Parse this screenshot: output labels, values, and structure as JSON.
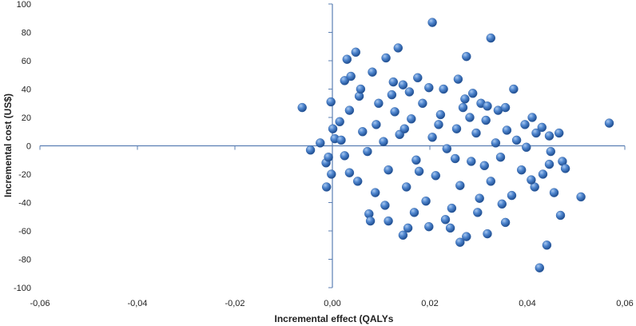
{
  "chart_data": {
    "type": "scatter",
    "title": "",
    "xlabel": "Incremental effect (QALYs",
    "ylabel": "Incremental cost (US$)",
    "xlim": [
      -0.06,
      0.06
    ],
    "ylim": [
      -100,
      100
    ],
    "x_ticks": [
      "-0,06",
      "-0,04",
      "-0,02",
      "0,00",
      "0,02",
      "0,04",
      "0,06"
    ],
    "y_ticks": [
      "100",
      "80",
      "60",
      "40",
      "20",
      "0",
      "-20",
      "-40",
      "-60",
      "-80",
      "-100"
    ],
    "grid": false,
    "legend": "none",
    "marker_color": "#3d73b8",
    "series": [
      {
        "values": [
          [
            -0.0062,
            27
          ],
          [
            -0.0045,
            -3
          ],
          [
            -0.0025,
            2
          ],
          [
            -0.0013,
            -12
          ],
          [
            -0.0012,
            -29
          ],
          [
            -0.0008,
            -8
          ],
          [
            -0.0003,
            31
          ],
          [
            -0.0002,
            -20
          ],
          [
            0.0001,
            12
          ],
          [
            0.0005,
            5
          ],
          [
            0.0025,
            46
          ],
          [
            0.003,
            61
          ],
          [
            0.0038,
            49
          ],
          [
            0.0048,
            66
          ],
          [
            0.0055,
            35
          ],
          [
            0.0082,
            52
          ],
          [
            0.0095,
            30
          ],
          [
            0.011,
            62
          ],
          [
            0.0125,
            45
          ],
          [
            0.0145,
            43
          ],
          [
            0.0135,
            69
          ],
          [
            0.0158,
            38
          ],
          [
            0.0175,
            48
          ],
          [
            0.0205,
            87
          ],
          [
            0.0228,
            40
          ],
          [
            0.0258,
            47
          ],
          [
            0.0275,
            63
          ],
          [
            0.0325,
            76
          ],
          [
            0.0288,
            37
          ],
          [
            0.0305,
            30
          ],
          [
            0.034,
            25
          ],
          [
            0.0355,
            27
          ],
          [
            0.0372,
            40
          ],
          [
            0.041,
            20
          ],
          [
            0.0395,
            15
          ],
          [
            0.0418,
            9
          ],
          [
            0.043,
            13
          ],
          [
            0.0445,
            7
          ],
          [
            0.0465,
            9
          ],
          [
            0.0568,
            16
          ],
          [
            0.0448,
            -4
          ],
          [
            0.0445,
            -13
          ],
          [
            0.0472,
            -11
          ],
          [
            0.0478,
            -16
          ],
          [
            0.0432,
            -20
          ],
          [
            0.0415,
            -29
          ],
          [
            0.0455,
            -33
          ],
          [
            0.051,
            -36
          ],
          [
            0.0468,
            -49
          ],
          [
            0.0355,
            -54
          ],
          [
            0.044,
            -70
          ],
          [
            0.0425,
            -86
          ],
          [
            0.0318,
            -62
          ],
          [
            0.0262,
            -68
          ],
          [
            0.0275,
            -64
          ],
          [
            0.0242,
            -58
          ],
          [
            0.0198,
            -57
          ],
          [
            0.0155,
            -58
          ],
          [
            0.0145,
            -63
          ],
          [
            0.0115,
            -53
          ],
          [
            0.0075,
            -48
          ],
          [
            0.0078,
            -53
          ],
          [
            0.0052,
            -25
          ],
          [
            0.0035,
            -19
          ],
          [
            0.0025,
            -7
          ],
          [
            0.0018,
            4
          ],
          [
            0.0015,
            17
          ],
          [
            0.0035,
            25
          ],
          [
            0.0062,
            10
          ],
          [
            0.0072,
            -4
          ],
          [
            0.009,
            15
          ],
          [
            0.0105,
            3
          ],
          [
            0.0115,
            -17
          ],
          [
            0.0128,
            24
          ],
          [
            0.0138,
            8
          ],
          [
            0.0152,
            -29
          ],
          [
            0.0162,
            19
          ],
          [
            0.0172,
            -10
          ],
          [
            0.0185,
            30
          ],
          [
            0.0192,
            -39
          ],
          [
            0.0205,
            6
          ],
          [
            0.0212,
            -21
          ],
          [
            0.0222,
            22
          ],
          [
            0.0235,
            -2
          ],
          [
            0.0245,
            -44
          ],
          [
            0.0255,
            12
          ],
          [
            0.0262,
            -28
          ],
          [
            0.0272,
            33
          ],
          [
            0.0285,
            -11
          ],
          [
            0.0295,
            9
          ],
          [
            0.0302,
            -37
          ],
          [
            0.0315,
            18
          ],
          [
            0.0325,
            -25
          ],
          [
            0.0335,
            2
          ],
          [
            0.0345,
            -8
          ],
          [
            0.0358,
            11
          ],
          [
            0.0368,
            -35
          ],
          [
            0.0378,
            4
          ],
          [
            0.0388,
            -17
          ],
          [
            0.0398,
            -1
          ],
          [
            0.0408,
            -24
          ],
          [
            0.0058,
            40
          ],
          [
            0.0088,
            -33
          ],
          [
            0.0122,
            36
          ],
          [
            0.0168,
            -47
          ],
          [
            0.0198,
            41
          ],
          [
            0.0232,
            -52
          ],
          [
            0.0268,
            27
          ],
          [
            0.0298,
            -47
          ],
          [
            0.0318,
            28
          ],
          [
            0.0348,
            -41
          ],
          [
            0.0108,
            -42
          ],
          [
            0.0148,
            12
          ],
          [
            0.0178,
            -18
          ],
          [
            0.0218,
            15
          ],
          [
            0.0252,
            -9
          ],
          [
            0.0282,
            20
          ],
          [
            0.0312,
            -14
          ]
        ]
      }
    ]
  }
}
